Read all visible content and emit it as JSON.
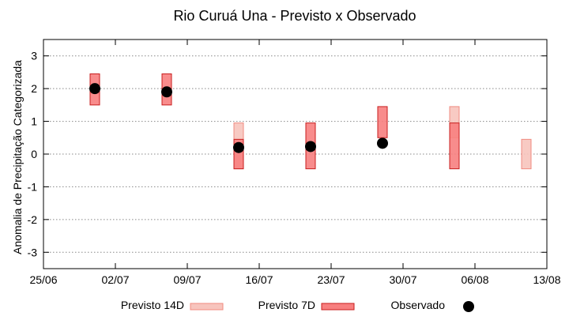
{
  "colors": {
    "p14_fill": "#f7c4bd",
    "p14_stroke": "#f08b80",
    "p7_fill": "#f77f7f",
    "p7_stroke": "#c81e1e",
    "observed": "#000000",
    "grid": "#888888"
  },
  "chart_data": {
    "type": "scatter",
    "title": "Rio Curuá Una - Previsto x Observado",
    "ylabel": "Anomalia de Precipitação Categorizada",
    "xlabel": "",
    "x_ticks": [
      "25/06",
      "02/07",
      "09/07",
      "16/07",
      "23/07",
      "30/07",
      "06/08",
      "13/08"
    ],
    "x_range": [
      "25/06",
      "13/08"
    ],
    "y_ticks": [
      "3",
      "2",
      "1",
      "0",
      "-1",
      "-2",
      "-3"
    ],
    "ylim": [
      -3.5,
      3.5
    ],
    "grid": "horizontal dotted",
    "legend_position": "bottom",
    "legend": {
      "p14_label": "Previsto 14D",
      "p7_label": "Previsto 7D",
      "obs_label": "Observado"
    },
    "series": [
      {
        "name": "Previsto 14D",
        "kind": "range",
        "points": [
          {
            "x": "14/07",
            "low": -0.45,
            "high": 0.95
          },
          {
            "x": "04/08",
            "low": 0.5,
            "high": 1.45
          },
          {
            "x": "11/08",
            "low": -0.45,
            "high": 0.45
          }
        ]
      },
      {
        "name": "Previsto 7D",
        "kind": "range",
        "points": [
          {
            "x": "30/06",
            "low": 1.5,
            "high": 2.45
          },
          {
            "x": "07/07",
            "low": 1.5,
            "high": 2.45
          },
          {
            "x": "14/07",
            "low": -0.45,
            "high": 0.45
          },
          {
            "x": "21/07",
            "low": -0.45,
            "high": 0.95
          },
          {
            "x": "28/07",
            "low": 0.5,
            "high": 1.45
          },
          {
            "x": "04/08",
            "low": -0.45,
            "high": 0.95
          }
        ]
      },
      {
        "name": "Observado",
        "kind": "point",
        "points": [
          {
            "x": "30/06",
            "y": 2.0
          },
          {
            "x": "07/07",
            "y": 1.9
          },
          {
            "x": "14/07",
            "y": 0.2
          },
          {
            "x": "21/07",
            "y": 0.23
          },
          {
            "x": "28/07",
            "y": 0.33
          }
        ]
      }
    ]
  }
}
